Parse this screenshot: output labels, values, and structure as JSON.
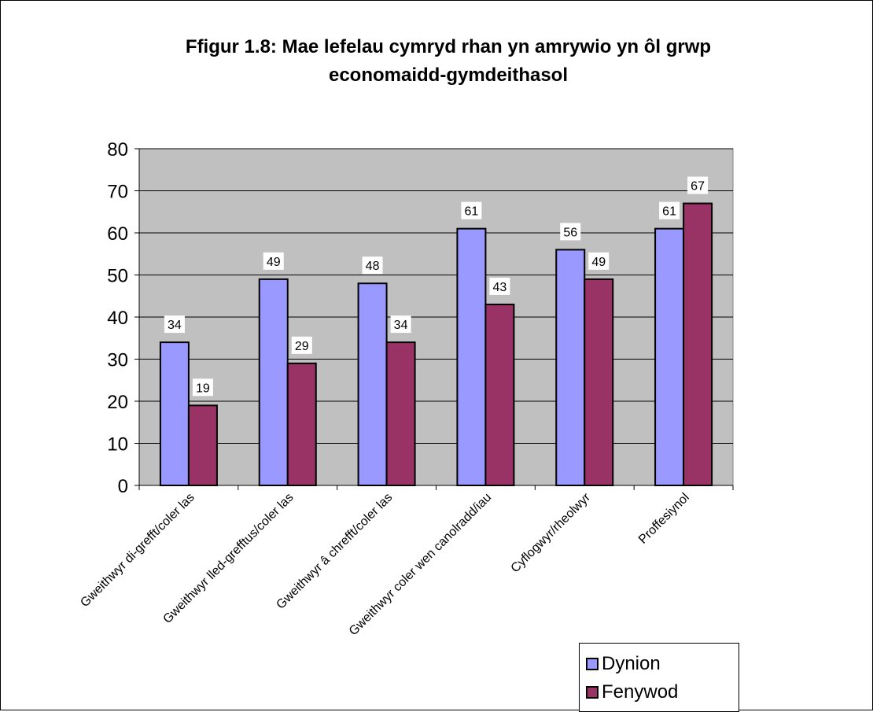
{
  "chart_data": {
    "type": "bar",
    "title_line1": "Ffigur 1.8: Mae lefelau cymryd rhan yn amrywio yn ôl grwp",
    "title_line2": "economaidd-gymdeithasol",
    "categories": [
      "Gweithwyr di-grefft/coler las",
      "Gweithwyr lled-grefftus/coler las",
      "Gweithwyr â chrefft/coler las",
      "Gweithwyr coler wen canolradd/iau",
      "Cyflogwyr/rheolwyr",
      "Proffesiynol"
    ],
    "series": [
      {
        "name": "Dynion",
        "values": [
          34,
          49,
          48,
          61,
          56,
          61
        ],
        "color": "#9999ff"
      },
      {
        "name": "Fenywod",
        "values": [
          19,
          29,
          34,
          43,
          49,
          67
        ],
        "color": "#993366"
      }
    ],
    "ylim": [
      0,
      80
    ],
    "yticks": [
      "0",
      "10",
      "20",
      "30",
      "40",
      "50",
      "60",
      "70",
      "80"
    ],
    "plot_background": "#c0c0c0",
    "grid": true,
    "legend_position": "bottom-right"
  }
}
